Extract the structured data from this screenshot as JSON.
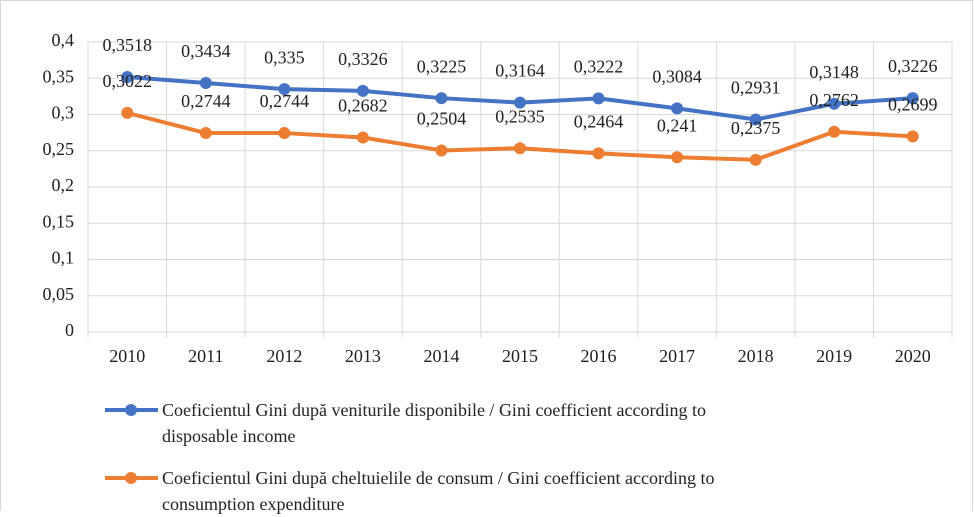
{
  "chart_data": {
    "type": "line",
    "categories": [
      "2010",
      "2011",
      "2012",
      "2013",
      "2014",
      "2015",
      "2016",
      "2017",
      "2018",
      "2019",
      "2020"
    ],
    "series": [
      {
        "name": "Coeficientul Gini după veniturile disponibile / Gini coefficient according to disposable income",
        "color": "#4472c4",
        "values": [
          0.3518,
          0.3434,
          0.335,
          0.3326,
          0.3225,
          0.3164,
          0.3222,
          0.3084,
          0.2931,
          0.3148,
          0.3226
        ],
        "value_labels": [
          "0,3518",
          "0,3434",
          "0,335",
          "0,3326",
          "0,3225",
          "0,3164",
          "0,3222",
          "0,3084",
          "0,2931",
          "0,3148",
          "0,3226"
        ]
      },
      {
        "name": "Coeficientul Gini după cheltuielile de consum / Gini coefficient according to consumption expenditure",
        "color": "#ed7d31",
        "values": [
          0.3022,
          0.2744,
          0.2744,
          0.2682,
          0.2504,
          0.2535,
          0.2464,
          0.241,
          0.2375,
          0.2762,
          0.2699
        ],
        "value_labels": [
          "0,3022",
          "0,2744",
          "0,2744",
          "0,2682",
          "0,2504",
          "0,2535",
          "0,2464",
          "0,241",
          "0,2375",
          "0,2762",
          "0,2699"
        ]
      }
    ],
    "ylim": [
      0,
      0.4
    ],
    "yticks": [
      0,
      {
        "value": 0.05,
        "label": "0,05"
      },
      {
        "value": 0.1,
        "label": "0,1"
      },
      {
        "value": 0.15,
        "label": "0,15"
      },
      {
        "value": 0.2,
        "label": "0,2"
      },
      {
        "value": 0.25,
        "label": "0,25"
      },
      {
        "value": 0.3,
        "label": "0,3"
      },
      {
        "value": 0.35,
        "label": "0,35"
      },
      {
        "value": 0.4,
        "label": "0,4"
      }
    ],
    "grid": true,
    "legend": "bottom"
  }
}
